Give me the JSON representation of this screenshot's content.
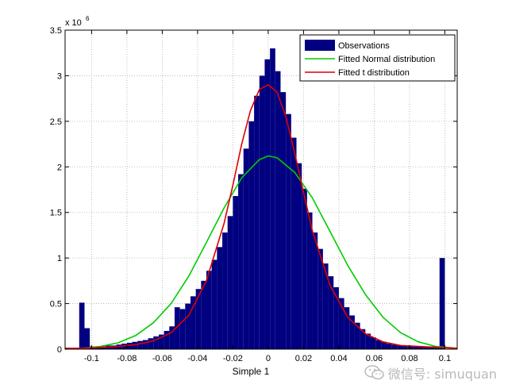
{
  "chart_data": {
    "type": "bar",
    "title": "",
    "xlabel": "Simple 1",
    "ylabel": "",
    "y_exponent_label": "x 10",
    "y_exponent_power": "6",
    "xlim": [
      -0.115,
      0.107
    ],
    "ylim": [
      0,
      3.5
    ],
    "xticks": [
      -0.1,
      -0.08,
      -0.06,
      -0.04,
      -0.02,
      0,
      0.02,
      0.04,
      0.06,
      0.08,
      0.1
    ],
    "xtick_labels": [
      "-0.1",
      "-0.08",
      "-0.06",
      "-0.04",
      "-0.02",
      "0",
      "0.02",
      "0.04",
      "0.06",
      "0.08",
      "0.1"
    ],
    "yticks": [
      0,
      0.5,
      1,
      1.5,
      2,
      2.5,
      3,
      3.5
    ],
    "ytick_labels": [
      "0",
      "0.5",
      "1",
      "1.5",
      "2",
      "2.5",
      "3",
      "3.5"
    ],
    "grid": true,
    "legend_position": "top-right",
    "series": [
      {
        "name": "Observations",
        "kind": "histogram",
        "color": "#000080",
        "bin_width": 0.003,
        "bins": [
          [
            -0.1055,
            0.51
          ],
          [
            -0.1025,
            0.23
          ],
          [
            -0.0995,
            0.03
          ],
          [
            -0.0965,
            0.03
          ],
          [
            -0.0935,
            0.03
          ],
          [
            -0.0905,
            0.04
          ],
          [
            -0.0875,
            0.04
          ],
          [
            -0.0845,
            0.05
          ],
          [
            -0.0815,
            0.06
          ],
          [
            -0.0785,
            0.07
          ],
          [
            -0.0755,
            0.08
          ],
          [
            -0.0725,
            0.09
          ],
          [
            -0.0695,
            0.1
          ],
          [
            -0.0665,
            0.12
          ],
          [
            -0.0635,
            0.14
          ],
          [
            -0.0605,
            0.16
          ],
          [
            -0.0575,
            0.2
          ],
          [
            -0.0545,
            0.25
          ],
          [
            -0.0515,
            0.46
          ],
          [
            -0.0485,
            0.44
          ],
          [
            -0.0455,
            0.5
          ],
          [
            -0.0425,
            0.58
          ],
          [
            -0.0395,
            0.66
          ],
          [
            -0.0365,
            0.75
          ],
          [
            -0.0335,
            0.86
          ],
          [
            -0.0305,
            0.98
          ],
          [
            -0.0275,
            1.12
          ],
          [
            -0.0245,
            1.28
          ],
          [
            -0.0215,
            1.46
          ],
          [
            -0.0185,
            1.68
          ],
          [
            -0.0155,
            1.92
          ],
          [
            -0.0125,
            2.2
          ],
          [
            -0.0095,
            2.5
          ],
          [
            -0.0065,
            2.78
          ],
          [
            -0.0035,
            3.0
          ],
          [
            -0.0005,
            3.18
          ],
          [
            0.0025,
            3.3
          ],
          [
            0.0055,
            3.05
          ],
          [
            0.0085,
            2.82
          ],
          [
            0.0115,
            2.58
          ],
          [
            0.0145,
            2.32
          ],
          [
            0.0175,
            2.04
          ],
          [
            0.0205,
            1.76
          ],
          [
            0.0235,
            1.5
          ],
          [
            0.0265,
            1.28
          ],
          [
            0.0295,
            1.1
          ],
          [
            0.0325,
            0.94
          ],
          [
            0.0355,
            0.8
          ],
          [
            0.0385,
            0.68
          ],
          [
            0.0415,
            0.56
          ],
          [
            0.0445,
            0.46
          ],
          [
            0.0475,
            0.37
          ],
          [
            0.0505,
            0.29
          ],
          [
            0.0535,
            0.22
          ],
          [
            0.0565,
            0.17
          ],
          [
            0.0595,
            0.13
          ],
          [
            0.0625,
            0.1
          ],
          [
            0.0655,
            0.08
          ],
          [
            0.0685,
            0.06
          ],
          [
            0.0715,
            0.05
          ],
          [
            0.0745,
            0.04
          ],
          [
            0.0775,
            0.04
          ],
          [
            0.0805,
            0.03
          ],
          [
            0.0835,
            0.03
          ],
          [
            0.0865,
            0.03
          ],
          [
            0.0895,
            0.03
          ],
          [
            0.0925,
            0.03
          ],
          [
            0.0955,
            0.03
          ],
          [
            0.0985,
            1.0
          ]
        ]
      },
      {
        "name": "Fitted Normal distribution",
        "kind": "line",
        "color": "#00cc00",
        "x": [
          -0.115,
          -0.105,
          -0.095,
          -0.085,
          -0.075,
          -0.065,
          -0.055,
          -0.045,
          -0.035,
          -0.025,
          -0.015,
          -0.005,
          0,
          0.005,
          0.015,
          0.025,
          0.035,
          0.045,
          0.055,
          0.065,
          0.075,
          0.085,
          0.095,
          0.107
        ],
        "y": [
          0.0,
          0.01,
          0.03,
          0.07,
          0.15,
          0.29,
          0.5,
          0.8,
          1.17,
          1.55,
          1.88,
          2.08,
          2.12,
          2.1,
          1.94,
          1.66,
          1.29,
          0.92,
          0.6,
          0.35,
          0.18,
          0.08,
          0.03,
          0.01
        ]
      },
      {
        "name": "Fitted t distribution",
        "kind": "line",
        "color": "#dd0000",
        "x": [
          -0.115,
          -0.105,
          -0.095,
          -0.085,
          -0.075,
          -0.065,
          -0.055,
          -0.045,
          -0.035,
          -0.025,
          -0.02,
          -0.015,
          -0.01,
          -0.005,
          0,
          0.005,
          0.01,
          0.015,
          0.02,
          0.025,
          0.035,
          0.045,
          0.055,
          0.065,
          0.075,
          0.085,
          0.095,
          0.107
        ],
        "y": [
          0.01,
          0.01,
          0.02,
          0.03,
          0.05,
          0.09,
          0.18,
          0.37,
          0.75,
          1.38,
          1.8,
          2.25,
          2.62,
          2.85,
          2.9,
          2.82,
          2.55,
          2.15,
          1.72,
          1.3,
          0.7,
          0.35,
          0.17,
          0.08,
          0.04,
          0.03,
          0.02,
          0.01
        ]
      }
    ]
  },
  "watermark": {
    "text": "微信号: simuquan",
    "icon": "wechat-icon",
    "color": "#b9b9b9"
  }
}
